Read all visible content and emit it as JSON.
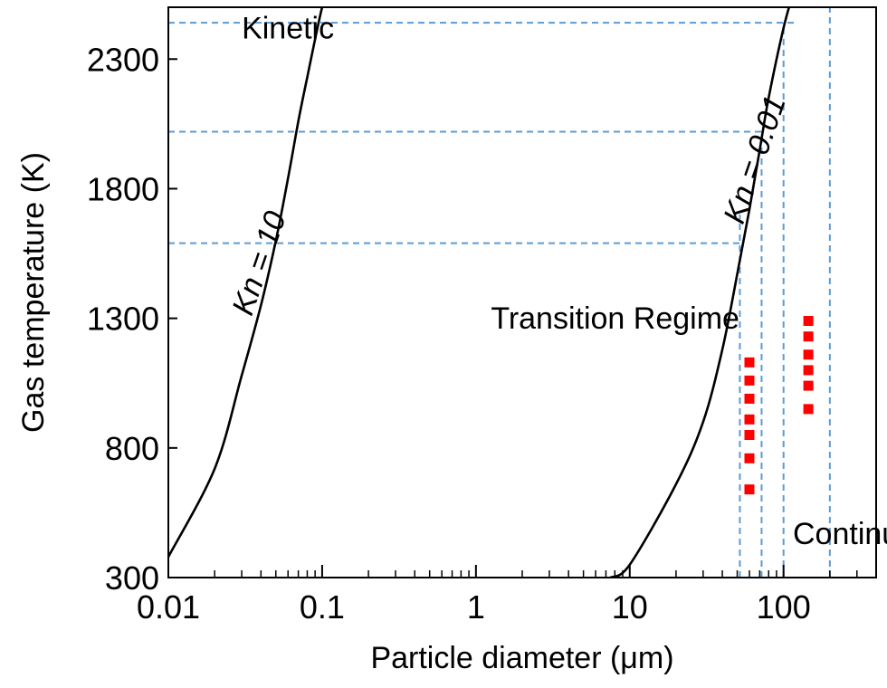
{
  "chart_data": {
    "type": "line",
    "title": "",
    "xlabel": "Particle diameter (μm)",
    "ylabel": "Gas temperature (K)",
    "xscale": "log",
    "yscale": "linear",
    "xlim": [
      0.01,
      400
    ],
    "ylim": [
      300,
      2500
    ],
    "grid": false,
    "x_ticks": [
      {
        "value": 0.01,
        "label": "0.01"
      },
      {
        "value": 0.1,
        "label": "0.1"
      },
      {
        "value": 1,
        "label": "1"
      },
      {
        "value": 10,
        "label": "10"
      },
      {
        "value": 100,
        "label": "100"
      }
    ],
    "y_ticks": [
      {
        "value": 300,
        "label": "300"
      },
      {
        "value": 800,
        "label": "800"
      },
      {
        "value": 1300,
        "label": "1300"
      },
      {
        "value": 1800,
        "label": "1800"
      },
      {
        "value": 2300,
        "label": "2300"
      }
    ],
    "series": [
      {
        "kind": "curve",
        "label": "Kn = 10",
        "color": "#000000",
        "points": [
          [
            0.01,
            380
          ],
          [
            0.02,
            720
          ],
          [
            0.03,
            1080
          ],
          [
            0.04,
            1350
          ],
          [
            0.05,
            1600
          ],
          [
            0.06,
            1840
          ],
          [
            0.07,
            2060
          ],
          [
            0.08,
            2230
          ],
          [
            0.1,
            2500
          ],
          [
            0.11,
            2550
          ]
        ]
      },
      {
        "kind": "curve",
        "label": "Kn = 0.01",
        "color": "#000000",
        "points": [
          [
            7.5,
            300
          ],
          [
            10,
            350
          ],
          [
            20,
            660
          ],
          [
            30,
            900
          ],
          [
            40,
            1180
          ],
          [
            50,
            1470
          ],
          [
            60,
            1720
          ],
          [
            70,
            1950
          ],
          [
            80,
            2150
          ],
          [
            100,
            2420
          ],
          [
            115,
            2550
          ]
        ]
      }
    ],
    "reference_lines": [
      {
        "orientation": "horizontal",
        "value": 2440,
        "from": 0.01,
        "to": 120,
        "color": "#5b9bd5",
        "style": "dashed"
      },
      {
        "orientation": "horizontal",
        "value": 2020,
        "from": 0.01,
        "to": 72,
        "color": "#5b9bd5",
        "style": "dashed"
      },
      {
        "orientation": "horizontal",
        "value": 1590,
        "from": 0.01,
        "to": 52,
        "color": "#5b9bd5",
        "style": "dashed"
      },
      {
        "orientation": "vertical",
        "value": 52,
        "from": 300,
        "to": 1700,
        "color": "#5b9bd5",
        "style": "dashed"
      },
      {
        "orientation": "vertical",
        "value": 72,
        "from": 300,
        "to": 2020,
        "color": "#5b9bd5",
        "style": "dashed"
      },
      {
        "orientation": "vertical",
        "value": 100,
        "from": 300,
        "to": 2440,
        "color": "#5b9bd5",
        "style": "dashed"
      },
      {
        "orientation": "vertical",
        "value": 200,
        "from": 300,
        "to": 2500,
        "color": "#5b9bd5",
        "style": "dashed"
      }
    ],
    "scatter_points": {
      "color": "#ff0000",
      "marker": "square",
      "points": [
        [
          60,
          640
        ],
        [
          60,
          760
        ],
        [
          60,
          850
        ],
        [
          60,
          910
        ],
        [
          60,
          990
        ],
        [
          60,
          1060
        ],
        [
          60,
          1130
        ],
        [
          145,
          950
        ],
        [
          145,
          1040
        ],
        [
          145,
          1100
        ],
        [
          145,
          1160
        ],
        [
          145,
          1230
        ],
        [
          145,
          1290
        ]
      ]
    },
    "annotations": [
      {
        "id": "kinetic",
        "text": "Kinetic",
        "x": 0.03,
        "y": 2380
      },
      {
        "id": "transition",
        "text": "Transition Regime",
        "x": 1.25,
        "y": 1260
      },
      {
        "id": "continuum",
        "text": "Continuum",
        "x": 115,
        "y": 430
      },
      {
        "id": "kn10",
        "text": "Kn = 10",
        "x": 0.045,
        "y": 1500,
        "rotate": -71
      },
      {
        "id": "kn001",
        "text": "Kn = 0.01",
        "x": 75,
        "y": 1900,
        "rotate": -71
      }
    ]
  }
}
